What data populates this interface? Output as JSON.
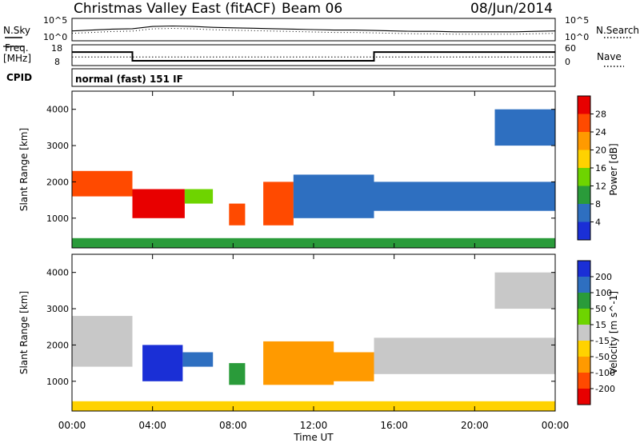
{
  "header": {
    "title": "Christmas Valley East (fitACF)",
    "beam": "Beam 06",
    "date": "08/Jun/2014"
  },
  "labels": {
    "nsky": "N.Sky",
    "nsearch": "N.Search",
    "freq_line1": "Freq.",
    "freq_line2": "[MHz]",
    "nave": "Nave",
    "cpid": "CPID",
    "cpid_value": "normal (fast) 151 IF",
    "noise_top": "10^5",
    "noise_bottom": "10^0",
    "xlabel": "Time UT"
  },
  "chart_data": [
    {
      "type": "line",
      "panel": "noise",
      "series": [
        {
          "name": "N.Sky",
          "style": "solid"
        },
        {
          "name": "N.Search",
          "style": "dotted"
        }
      ],
      "yscale": "log",
      "yticks_left": [
        "10^5",
        "10^0"
      ],
      "yticks_right": [
        "10^5",
        "10^0"
      ],
      "x": [
        0,
        1,
        2,
        3,
        4,
        5,
        6,
        7,
        8,
        9,
        10,
        11,
        12,
        13,
        14,
        15,
        16,
        17,
        18,
        19,
        20,
        21,
        22,
        23,
        24
      ],
      "values_log": [
        2.2,
        2.4,
        2.6,
        2.7,
        3.2,
        3.3,
        3.2,
        3.0,
        2.9,
        2.8,
        2.7,
        2.6,
        2.5,
        2.4,
        2.4,
        2.3,
        2.2,
        2.1,
        2.1,
        2.0,
        2.0,
        2.0,
        2.0,
        2.1,
        2.2
      ]
    },
    {
      "type": "line",
      "panel": "frequency",
      "series": [
        {
          "name": "Freq.",
          "style": "solid",
          "x": [
            0,
            3,
            3,
            15,
            15,
            24
          ],
          "values": [
            14.5,
            14.5,
            10.3,
            10.3,
            14.5,
            14.5
          ]
        },
        {
          "name": "Nave",
          "style": "dotted",
          "x": [
            0,
            24
          ],
          "values": [
            25,
            25
          ]
        }
      ],
      "yticks_left": [
        18,
        8
      ],
      "yticks_right": [
        60,
        0
      ],
      "ylim_left": [
        8,
        18
      ],
      "ylim_right": [
        0,
        60
      ]
    },
    {
      "type": "heatmap",
      "panel": "power",
      "ylabel": "Slant Range [km]",
      "xlabel": "Time UT",
      "xlim": [
        0,
        24
      ],
      "ylim": [
        180,
        4500
      ],
      "xticks": [
        "00:00",
        "04:00",
        "08:00",
        "12:00",
        "16:00",
        "20:00",
        "00:00"
      ],
      "yticks": [
        1000,
        2000,
        3000,
        4000
      ],
      "colorbar_label": "Power [dB]",
      "colorbar_ticks": [
        28,
        24,
        20,
        16,
        12,
        8,
        4
      ],
      "colorbar_colors": [
        "#e80000",
        "#ff4a00",
        "#ff9a00",
        "#ffd200",
        "#6ed400",
        "#2a9b3a",
        "#2e6fc0",
        "#1a2fd6"
      ],
      "regions": [
        {
          "t0": 0.0,
          "t1": 3.0,
          "r0": 1600,
          "r1": 2300,
          "value": 26
        },
        {
          "t0": 3.0,
          "t1": 5.6,
          "r0": 1000,
          "r1": 1800,
          "value": 28
        },
        {
          "t0": 5.6,
          "t1": 7.0,
          "r0": 1400,
          "r1": 1800,
          "value": 12
        },
        {
          "t0": 7.8,
          "t1": 8.6,
          "r0": 800,
          "r1": 1400,
          "value": 26
        },
        {
          "t0": 9.5,
          "t1": 11.0,
          "r0": 800,
          "r1": 2000,
          "value": 24
        },
        {
          "t0": 11.0,
          "t1": 15.0,
          "r0": 1000,
          "r1": 2200,
          "value": 6
        },
        {
          "t0": 15.0,
          "t1": 24.0,
          "r0": 1200,
          "r1": 2000,
          "value": 6
        },
        {
          "t0": 21.0,
          "t1": 24.0,
          "r0": 3000,
          "r1": 4000,
          "value": 6
        },
        {
          "t0": 0.0,
          "t1": 24.0,
          "r0": 180,
          "r1": 450,
          "value": 8
        }
      ]
    },
    {
      "type": "heatmap",
      "panel": "velocity",
      "ylabel": "Slant Range [km]",
      "xlabel": "Time UT",
      "xlim": [
        0,
        24
      ],
      "ylim": [
        180,
        4500
      ],
      "xticks": [
        "00:00",
        "04:00",
        "08:00",
        "12:00",
        "16:00",
        "20:00",
        "00:00"
      ],
      "yticks": [
        1000,
        2000,
        3000,
        4000
      ],
      "colorbar_label": "Velocity [m s^-1]",
      "colorbar_ticks": [
        "200",
        "100",
        "50",
        "15",
        "-15",
        "-50",
        "-100",
        "-200"
      ],
      "colorbar_colors": [
        "#1a2fd6",
        "#2e6fc0",
        "#2a9b3a",
        "#6ed400",
        "#c8c8c8",
        "#ffd200",
        "#ff9a00",
        "#ff4a00",
        "#e80000"
      ],
      "regions": [
        {
          "t0": 0.0,
          "t1": 3.0,
          "r0": 1400,
          "r1": 2800,
          "value": 0
        },
        {
          "t0": 3.5,
          "t1": 5.5,
          "r0": 1000,
          "r1": 2000,
          "value": 200
        },
        {
          "t0": 5.5,
          "t1": 7.0,
          "r0": 1400,
          "r1": 1800,
          "value": 150
        },
        {
          "t0": 7.8,
          "t1": 8.6,
          "r0": 900,
          "r1": 1500,
          "value": 80
        },
        {
          "t0": 9.5,
          "t1": 13.0,
          "r0": 900,
          "r1": 2100,
          "value": -80
        },
        {
          "t0": 12.0,
          "t1": 15.0,
          "r0": 1000,
          "r1": 1800,
          "value": -60
        },
        {
          "t0": 15.0,
          "t1": 24.0,
          "r0": 1200,
          "r1": 2200,
          "value": 0
        },
        {
          "t0": 21.0,
          "t1": 24.0,
          "r0": 3000,
          "r1": 4000,
          "value": 0
        },
        {
          "t0": 0.0,
          "t1": 24.0,
          "r0": 180,
          "r1": 450,
          "value": -30
        }
      ]
    }
  ]
}
